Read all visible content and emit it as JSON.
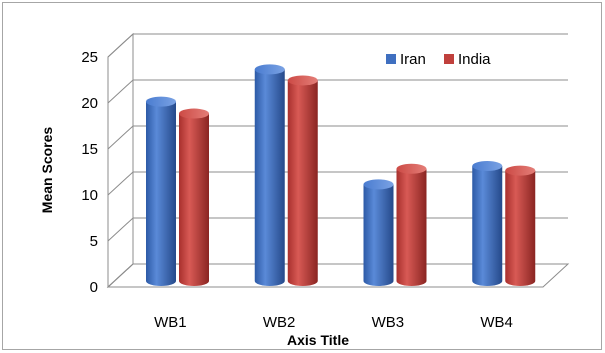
{
  "chart_data": {
    "type": "bar",
    "style": "3d-cylinder",
    "categories": [
      "WB1",
      "WB2",
      "WB3",
      "WB4"
    ],
    "series": [
      {
        "name": "Iran",
        "color": "#3f6fc0",
        "values": [
          19.5,
          23,
          10.5,
          12.5
        ]
      },
      {
        "name": "India",
        "color": "#c0403c",
        "values": [
          18.2,
          21.8,
          12.2,
          12
        ]
      }
    ],
    "xlabel": "Axis Title",
    "ylabel": "Mean Scores",
    "ylim": [
      0,
      25
    ],
    "yticks": [
      0,
      5,
      10,
      15,
      20,
      25
    ],
    "grid": true,
    "legend": "top-right"
  }
}
